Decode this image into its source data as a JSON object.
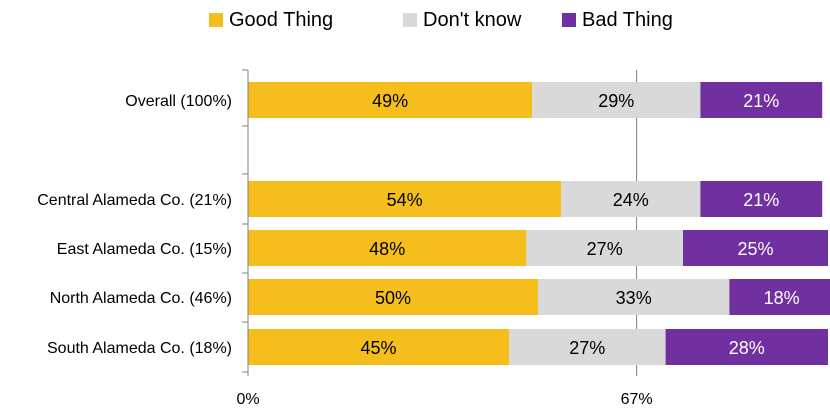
{
  "chart_data": {
    "type": "bar",
    "orientation": "horizontal",
    "stacked": true,
    "title": "",
    "xlabel": "",
    "ylabel": "",
    "categories": [
      "Overall (100%)",
      "",
      "Central Alameda Co. (21%)",
      "East Alameda Co. (15%)",
      "North Alameda Co. (46%)",
      "South Alameda Co. (18%)"
    ],
    "series": [
      {
        "name": "Good Thing",
        "color": "#F6BE1C",
        "values": [
          49,
          null,
          54,
          48,
          50,
          45
        ],
        "labels": [
          "49%",
          "",
          "54%",
          "48%",
          "50%",
          "45%"
        ]
      },
      {
        "name": "Don't know",
        "color": "#D9D9D9",
        "values": [
          29,
          null,
          24,
          27,
          33,
          27
        ],
        "labels": [
          "29%",
          "",
          "24%",
          "27%",
          "33%",
          "27%"
        ]
      },
      {
        "name": "Bad Thing",
        "color": "#7030A0",
        "values": [
          21,
          null,
          21,
          25,
          18,
          28
        ],
        "labels": [
          "21%",
          "",
          "21%",
          "25%",
          "18%",
          "28%"
        ]
      }
    ],
    "xlim": [
      0,
      100
    ],
    "xticks": [
      0,
      67
    ],
    "xtick_labels": [
      "0%",
      "67%"
    ],
    "gridlines": [
      67
    ],
    "legend_position": "top"
  }
}
